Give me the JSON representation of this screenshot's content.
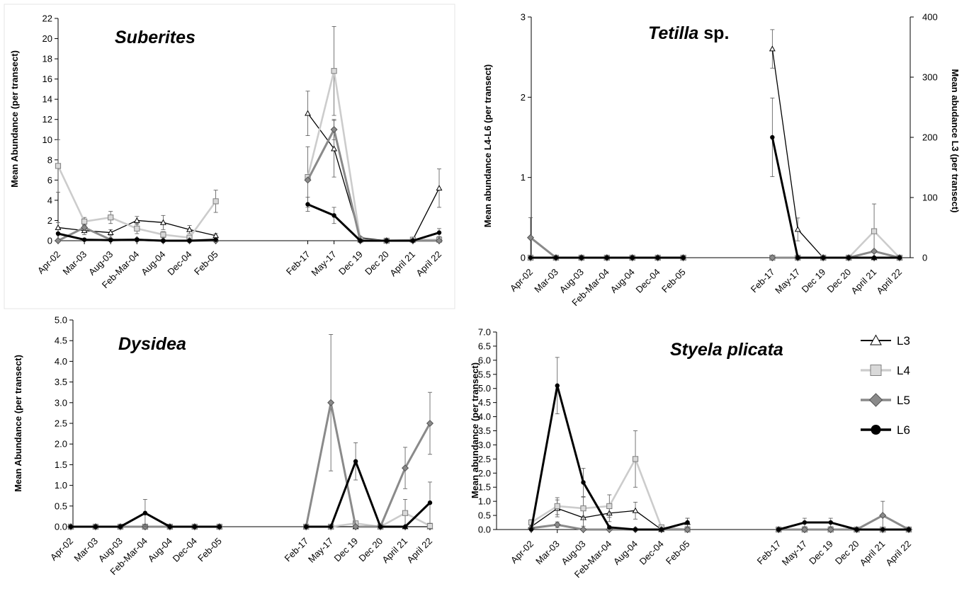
{
  "legend": {
    "entries": [
      {
        "label": "L3",
        "color": "#000000",
        "marker": "triangle",
        "line_width": 1.3
      },
      {
        "label": "L4",
        "color": "#cccccc",
        "marker": "square",
        "line_width": 2.6
      },
      {
        "label": "L5",
        "color": "#8a8a8a",
        "marker": "diamond",
        "line_width": 3
      },
      {
        "label": "L6",
        "color": "#000000",
        "marker": "circle",
        "line_width": 3
      }
    ]
  },
  "chart_data": [
    {
      "type": "line",
      "title_italic": "Suberites",
      "title_rest": "",
      "categories": [
        "Apr-02",
        "Mar-03",
        "Aug-03",
        "Feb-Mar-04",
        "Aug-04",
        "Dec-04",
        "Feb-05",
        "Feb-17",
        "May-17",
        "Dec 19",
        "Dec 20",
        "April 21",
        "April 22"
      ],
      "ylabel": "Mean Abundance (per transect)",
      "ylim": [
        0,
        22
      ],
      "yticks": [
        "0",
        "2",
        "4",
        "6",
        "8",
        "10",
        "12",
        "14",
        "16",
        "18",
        "20",
        "22"
      ],
      "series": [
        {
          "name": "L3",
          "values": [
            1.3,
            1.0,
            0.8,
            2.0,
            1.8,
            1.1,
            0.5,
            12.6,
            9.1,
            0.3,
            0.0,
            0.1,
            5.2
          ],
          "errors": [
            0.5,
            0.4,
            0.3,
            0.4,
            0.7,
            0.4,
            0.2,
            2.2,
            2.8,
            0.1,
            0.0,
            0.1,
            1.9
          ]
        },
        {
          "name": "L4",
          "values": [
            7.4,
            1.9,
            2.3,
            1.2,
            0.6,
            0.3,
            3.9,
            6.3,
            16.8,
            0.1,
            0.0,
            0.1,
            0.1
          ],
          "errors": [
            2.6,
            0.4,
            0.6,
            0.5,
            0.3,
            0.2,
            1.1,
            3.0,
            4.4,
            0.1,
            0.0,
            0.1,
            0.1
          ]
        },
        {
          "name": "L5",
          "values": [
            0.0,
            1.3,
            0.1,
            0.1,
            0.0,
            0.0,
            0.0,
            6.0,
            11.0,
            0.0,
            0.0,
            0.0,
            0.0
          ],
          "errors": [
            0,
            0.3,
            0,
            0,
            0,
            0,
            0,
            0,
            1.0,
            0,
            0,
            0,
            0
          ]
        },
        {
          "name": "L6",
          "values": [
            0.7,
            0.1,
            0.05,
            0.1,
            0.0,
            0.0,
            0.1,
            3.6,
            2.5,
            0.0,
            0.0,
            0.0,
            0.8
          ],
          "errors": [
            0,
            0,
            0,
            0,
            0,
            0,
            0,
            0.7,
            0.8,
            0,
            0,
            0,
            0.4
          ]
        }
      ]
    },
    {
      "type": "line",
      "title_italic": "Tetilla",
      "title_rest": " sp.",
      "categories": [
        "Apr-02",
        "Mar-03",
        "Aug-03",
        "Feb-Mar-04",
        "Aug-04",
        "Dec-04",
        "Feb-05",
        "Feb-17",
        "May-17",
        "Dec 19",
        "Dec 20",
        "April 21",
        "April 22"
      ],
      "ylabel": "Mean abundance L4-L6 (per transect)",
      "ylabel_right": "Mean abudance L3 (per transect)",
      "ylim": [
        0,
        3
      ],
      "yticks": [
        "0",
        "1",
        "2",
        "3"
      ],
      "ylim_right": [
        0,
        400
      ],
      "yticks_right": [
        "0",
        "100",
        "200",
        "300",
        "400"
      ],
      "series": [
        {
          "name": "L3",
          "axis": "right",
          "values": [
            0,
            0,
            0,
            0,
            0,
            0,
            0,
            347,
            47,
            0,
            0,
            0,
            0
          ],
          "errors": [
            0,
            0,
            0,
            0,
            0,
            0,
            0,
            32,
            19,
            0,
            0,
            0,
            0
          ]
        },
        {
          "name": "L4",
          "values": [
            0,
            0,
            0,
            0,
            0,
            0,
            0,
            0,
            0,
            0,
            0,
            0.33,
            0
          ],
          "errors": [
            0,
            0,
            0,
            0,
            0,
            0,
            0,
            0,
            0,
            0,
            0,
            0.34,
            0
          ]
        },
        {
          "name": "L5",
          "values": [
            0.25,
            0,
            0,
            0,
            0,
            0,
            0,
            0,
            0,
            0,
            0,
            0.08,
            0
          ],
          "errors": [
            0.25,
            0,
            0,
            0,
            0,
            0,
            0,
            0,
            0,
            0,
            0,
            0,
            0
          ]
        },
        {
          "name": "L6",
          "values": [
            0,
            0,
            0,
            0,
            0,
            0,
            0,
            1.5,
            0,
            0,
            0,
            0,
            0
          ],
          "errors": [
            0,
            0,
            0,
            0,
            0,
            0,
            0,
            0.49,
            0,
            0,
            0,
            0,
            0
          ]
        }
      ]
    },
    {
      "type": "line",
      "title_italic": "Dysidea",
      "title_rest": "",
      "categories": [
        "Apr-02",
        "Mar-03",
        "Aug-03",
        "Feb-Mar-04",
        "Aug-04",
        "Dec-04",
        "Feb-05",
        "Feb-17",
        "May-17",
        "Dec 19",
        "Dec 20",
        "April 21",
        "April 22"
      ],
      "ylabel": "Mean Abundance (per transect)",
      "ylim": [
        0,
        5
      ],
      "yticks": [
        "0.0",
        "0.5",
        "1.0",
        "1.5",
        "2.0",
        "2.5",
        "3.0",
        "3.5",
        "4.0",
        "4.5",
        "5.0"
      ],
      "series": [
        {
          "name": "L3",
          "values": [
            0,
            0,
            0,
            0,
            0,
            0,
            0,
            0,
            0,
            0,
            0,
            0,
            0
          ],
          "errors": [
            0,
            0,
            0,
            0,
            0,
            0,
            0,
            0,
            0,
            0,
            0,
            0,
            0
          ]
        },
        {
          "name": "L4",
          "values": [
            0,
            0,
            0,
            0,
            0,
            0,
            0,
            0,
            0,
            0.08,
            0,
            0.33,
            0.02
          ],
          "errors": [
            0,
            0,
            0,
            0,
            0,
            0,
            0,
            0,
            0,
            0.06,
            0,
            0.33,
            0
          ]
        },
        {
          "name": "L5",
          "values": [
            0,
            0,
            0,
            0,
            0,
            0,
            0,
            0,
            3.0,
            0,
            0,
            1.42,
            2.5
          ],
          "errors": [
            0,
            0,
            0,
            0,
            0,
            0,
            0,
            0,
            1.65,
            0,
            0,
            0.5,
            0.75
          ]
        },
        {
          "name": "L6",
          "values": [
            0,
            0,
            0,
            0.33,
            0,
            0,
            0,
            0,
            0,
            1.58,
            0,
            0,
            0.58
          ],
          "errors": [
            0,
            0,
            0,
            0.33,
            0,
            0,
            0,
            0,
            0,
            0.45,
            0,
            0,
            0.5
          ]
        }
      ]
    },
    {
      "type": "line",
      "title_italic": "Styela plicata",
      "title_rest": "",
      "categories": [
        "Apr-02",
        "Mar-03",
        "Aug-03",
        "Feb-Mar-04",
        "Aug-04",
        "Dec-04",
        "Feb-05",
        "Feb-17",
        "May-17",
        "Dec 19",
        "Dec 20",
        "April 21",
        "April 22"
      ],
      "ylabel": "Mean abundance (per transect)",
      "ylim": [
        0,
        7
      ],
      "yticks": [
        "0.0",
        "0.5",
        "1.0",
        "1.5",
        "2.0",
        "2.5",
        "3.0",
        "3.5",
        "4.0",
        "4.5",
        "5.0",
        "5.5",
        "6.0",
        "6.5",
        "7.0"
      ],
      "series": [
        {
          "name": "L3",
          "values": [
            0.1,
            0.75,
            0.42,
            0.58,
            0.67,
            0.0,
            0.25,
            0,
            0,
            0,
            0,
            0,
            0
          ],
          "errors": [
            0,
            0.3,
            0.3,
            0.3,
            0.3,
            0,
            0.15,
            0,
            0,
            0,
            0,
            0,
            0
          ]
        },
        {
          "name": "L4",
          "values": [
            0.25,
            0.83,
            0.75,
            0.83,
            2.5,
            0.08,
            0.0,
            0,
            0,
            0,
            0,
            0,
            0
          ],
          "errors": [
            0.1,
            0.3,
            0.4,
            0.4,
            1.0,
            0.05,
            0,
            0,
            0,
            0,
            0,
            0,
            0
          ]
        },
        {
          "name": "L5",
          "values": [
            0.05,
            0.17,
            0.0,
            0.0,
            0,
            0,
            0,
            0,
            0.0,
            0,
            0,
            0.5,
            0.0
          ],
          "errors": [
            0,
            0.1,
            0,
            0,
            0,
            0,
            0,
            0,
            0,
            0,
            0,
            0.5,
            0
          ]
        },
        {
          "name": "L6",
          "values": [
            0.0,
            5.1,
            1.67,
            0.08,
            0.0,
            0.0,
            0.25,
            0.0,
            0.25,
            0.25,
            0.0,
            0.0,
            0.0
          ],
          "errors": [
            0,
            1.0,
            0.5,
            0,
            0,
            0,
            0.15,
            0,
            0.15,
            0.15,
            0,
            0,
            0
          ]
        }
      ]
    }
  ]
}
